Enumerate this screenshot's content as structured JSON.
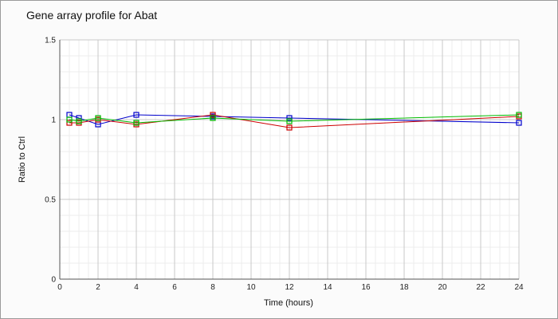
{
  "chart_data": {
    "type": "line",
    "title": "Gene array profile for Abat",
    "xlabel": "Time (hours)",
    "ylabel": "Ratio to Ctrl",
    "xlim": [
      0,
      24
    ],
    "ylim": [
      0,
      1.5
    ],
    "xticks": [
      "0",
      "2",
      "4",
      "6",
      "8",
      "10",
      "12",
      "14",
      "16",
      "18",
      "20",
      "22",
      "24"
    ],
    "yticks": [
      "0",
      "0.5",
      "1",
      "1.5"
    ],
    "grid": true,
    "legend": "none",
    "series": [
      {
        "color": "#0000cc",
        "marker": "square",
        "x": [
          0.5,
          1,
          2,
          4,
          8,
          12,
          24
        ],
        "y": [
          1.03,
          1.01,
          0.97,
          1.03,
          1.02,
          1.01,
          0.98
        ]
      },
      {
        "color": "#cc0000",
        "marker": "square",
        "x": [
          0.5,
          1,
          2,
          4,
          8,
          12,
          24
        ],
        "y": [
          0.98,
          0.98,
          1.0,
          0.97,
          1.03,
          0.95,
          1.02
        ]
      },
      {
        "color": "#00bb00",
        "marker": "square",
        "x": [
          0.5,
          1,
          2,
          4,
          8,
          12,
          24
        ],
        "y": [
          1.0,
          0.99,
          1.01,
          0.98,
          1.01,
          0.99,
          1.03
        ]
      }
    ]
  }
}
